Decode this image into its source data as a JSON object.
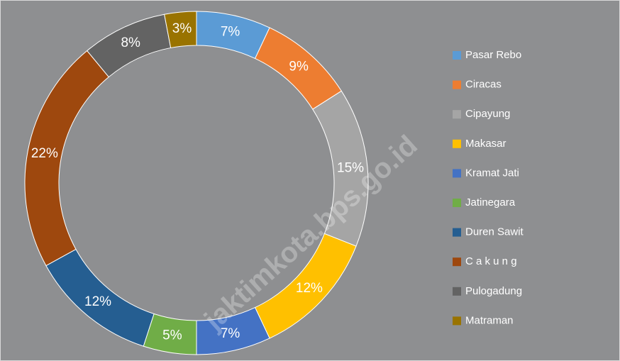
{
  "chart_data": {
    "type": "donut",
    "categories": [
      "Pasar Rebo",
      "Ciracas",
      "Cipayung",
      "Makasar",
      "Kramat Jati",
      "Jatinegara",
      "Duren Sawit",
      "C a k u n g",
      "Pulogadung",
      "Matraman"
    ],
    "values": [
      7,
      9,
      15,
      12,
      7,
      5,
      12,
      22,
      8,
      3
    ],
    "value_labels": [
      "7%",
      "9%",
      "15%",
      "12%",
      "7%",
      "5%",
      "12%",
      "22%",
      "8%",
      "3%"
    ],
    "colors": [
      "#5b9bd5",
      "#ed7d31",
      "#a5a5a5",
      "#ffc000",
      "#4472c4",
      "#70ad47",
      "#255e91",
      "#9e480e",
      "#636363",
      "#997300"
    ],
    "legend": "right",
    "watermark": "jaktimkota.bps.go.id"
  }
}
